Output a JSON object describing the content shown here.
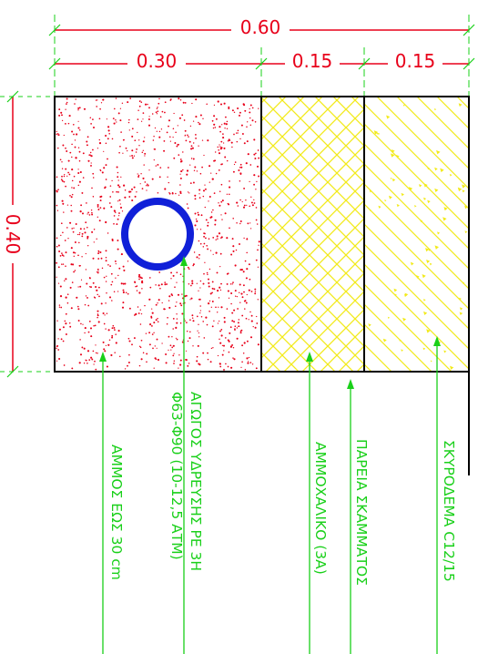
{
  "dimensions": {
    "total_width": "0.60",
    "width_sand": "0.30",
    "width_gravel": "0.15",
    "width_concrete": "0.15",
    "height": "0.40"
  },
  "labels": {
    "sand": "ΑΜΜΟΣ ΕΩΣ 30 cm",
    "pipe_line1": "ΑΓΩΓΟΣ ΥΔΡΕΥΣΗΣ ΡΕ 3Η",
    "pipe_line2": "Φ63-Φ90 (10-12,5 ΑΤΜ)",
    "gravel": "ΑΜΜΟΧΑΛΙΚΟ (3Α)",
    "edge": "ΠΑΡΕΙΑ ΣΚΑΜΜΑΤΟΣ",
    "concrete": "ΣΚΥΡΟΔΕΜΑ C12/15"
  },
  "colors": {
    "dimension": "#e8001a",
    "leader": "#19d019",
    "sand_dots": "#e8001a",
    "hatch": "#f2ea1a",
    "pipe": "#1020d8",
    "outline": "#000000"
  }
}
